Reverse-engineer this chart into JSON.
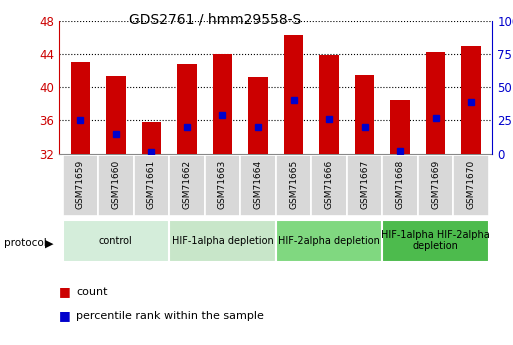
{
  "title": "GDS2761 / hmm29558-S",
  "samples": [
    "GSM71659",
    "GSM71660",
    "GSM71661",
    "GSM71662",
    "GSM71663",
    "GSM71664",
    "GSM71665",
    "GSM71666",
    "GSM71667",
    "GSM71668",
    "GSM71669",
    "GSM71670"
  ],
  "counts": [
    43.0,
    41.3,
    35.8,
    42.8,
    44.0,
    41.2,
    46.3,
    43.9,
    41.4,
    38.5,
    44.2,
    45.0
  ],
  "percentile_values": [
    36.0,
    34.3,
    32.2,
    35.2,
    36.6,
    35.2,
    38.5,
    36.1,
    35.2,
    32.3,
    36.3,
    38.2
  ],
  "ymin": 32,
  "ymax": 48,
  "yticks": [
    32,
    36,
    40,
    44,
    48
  ],
  "right_yticks": [
    0,
    25,
    50,
    75,
    100
  ],
  "bar_color": "#cc0000",
  "dot_color": "#0000cc",
  "bar_width": 0.55,
  "protocol_groups": [
    {
      "label": "control",
      "start": 0,
      "end": 2,
      "color": "#d4edda"
    },
    {
      "label": "HIF-1alpha depletion",
      "start": 3,
      "end": 5,
      "color": "#c8e6c9"
    },
    {
      "label": "HIF-2alpha depletion",
      "start": 6,
      "end": 8,
      "color": "#80d880"
    },
    {
      "label": "HIF-1alpha HIF-2alpha\ndepletion",
      "start": 9,
      "end": 11,
      "color": "#4dbb4d"
    }
  ],
  "ylabel_left_color": "#cc0000",
  "ylabel_right_color": "#0000cc",
  "legend_count_color": "#cc0000",
  "legend_pct_color": "#0000cc",
  "sample_box_color": "#d8d8d8"
}
